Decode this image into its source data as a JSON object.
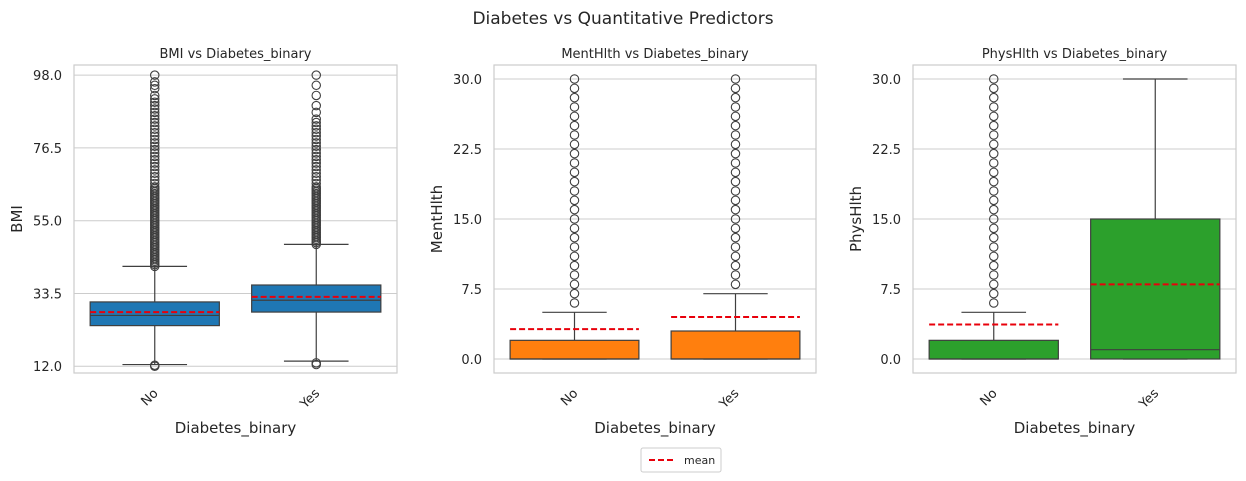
{
  "suptitle": "Diabetes vs Quantitative Predictors",
  "legend": {
    "label": "mean",
    "line_color": "#e8000b",
    "placement": "bottom-center"
  },
  "chart_data": [
    {
      "type": "box",
      "title": "BMI vs Diabetes_binary",
      "xlabel": "Diabetes_binary",
      "ylabel": "BMI",
      "categories": [
        "No",
        "Yes"
      ],
      "color": "#1f77b4",
      "ylim": [
        10.0,
        101.0
      ],
      "yticks": [
        12.0,
        33.5,
        55.0,
        76.5,
        98.0
      ],
      "ytick_labels": [
        "12.0",
        "33.5",
        "55.0",
        "76.5",
        "98.0"
      ],
      "grid": true,
      "boxes": [
        {
          "category": "No",
          "whislo": 12.5,
          "q1": 24.0,
          "median": 27.0,
          "q3": 31.0,
          "whishi": 41.5,
          "mean": 28.0,
          "fliers": [
            12.0,
            12.3,
            41.5,
            42,
            42.5,
            43,
            43.5,
            44,
            44.5,
            45,
            45.5,
            46,
            46.5,
            47,
            47.5,
            48,
            48.5,
            49,
            49.5,
            50,
            50.5,
            51,
            51.5,
            52,
            52.5,
            53,
            53.5,
            54,
            54.5,
            55,
            55.5,
            56,
            56.5,
            57,
            57.5,
            58,
            58.5,
            59,
            59.5,
            60,
            60.5,
            61,
            61.5,
            62,
            62.5,
            63,
            63.5,
            64,
            64.5,
            65,
            66,
            67,
            68,
            69,
            70,
            71,
            72,
            73,
            74,
            75,
            76,
            77,
            78,
            79,
            80,
            81,
            82,
            83,
            84,
            85,
            86,
            87,
            88,
            89,
            90,
            91,
            92,
            94,
            95,
            96,
            98
          ]
        },
        {
          "category": "Yes",
          "whislo": 13.5,
          "q1": 28.0,
          "median": 31.5,
          "q3": 36.0,
          "whishi": 48.0,
          "mean": 32.5,
          "fliers": [
            12.5,
            13.0,
            48.0,
            48.5,
            49,
            49.5,
            50,
            50.5,
            51,
            51.5,
            52,
            52.5,
            53,
            53.5,
            54,
            54.5,
            55,
            55.5,
            56,
            56.5,
            57,
            57.5,
            58,
            58.5,
            59,
            59.5,
            60,
            60.5,
            61,
            61.5,
            62,
            62.5,
            63,
            63.5,
            64,
            64.5,
            65,
            66,
            67,
            68,
            69,
            70,
            71,
            72,
            73,
            74,
            75,
            76,
            77,
            78,
            79,
            80,
            81,
            82,
            83,
            84,
            85,
            87,
            89,
            92,
            95,
            98
          ]
        }
      ]
    },
    {
      "type": "box",
      "title": "MentHlth vs Diabetes_binary",
      "xlabel": "Diabetes_binary",
      "ylabel": "MentHlth",
      "categories": [
        "No",
        "Yes"
      ],
      "color": "#ff7f0e",
      "ylim": [
        -1.5,
        31.5
      ],
      "yticks": [
        0.0,
        7.5,
        15.0,
        22.5,
        30.0
      ],
      "ytick_labels": [
        "0.0",
        "7.5",
        "15.0",
        "22.5",
        "30.0"
      ],
      "grid": true,
      "boxes": [
        {
          "category": "No",
          "whislo": 0,
          "q1": 0,
          "median": 0,
          "q3": 2,
          "whishi": 5,
          "mean": 3.2,
          "fliers": [
            6,
            7,
            8,
            9,
            10,
            11,
            12,
            13,
            14,
            15,
            16,
            17,
            18,
            19,
            20,
            21,
            22,
            23,
            24,
            25,
            26,
            27,
            28,
            29,
            30
          ]
        },
        {
          "category": "Yes",
          "whislo": 0,
          "q1": 0,
          "median": 0,
          "q3": 3,
          "whishi": 7,
          "mean": 4.5,
          "fliers": [
            8,
            9,
            10,
            11,
            12,
            13,
            14,
            15,
            16,
            17,
            18,
            19,
            20,
            21,
            22,
            23,
            24,
            25,
            26,
            27,
            28,
            29,
            30
          ]
        }
      ]
    },
    {
      "type": "box",
      "title": "PhysHlth vs Diabetes_binary",
      "xlabel": "Diabetes_binary",
      "ylabel": "PhysHlth",
      "categories": [
        "No",
        "Yes"
      ],
      "color": "#2ca02c",
      "ylim": [
        -1.5,
        31.5
      ],
      "yticks": [
        0.0,
        7.5,
        15.0,
        22.5,
        30.0
      ],
      "ytick_labels": [
        "0.0",
        "7.5",
        "15.0",
        "22.5",
        "30.0"
      ],
      "grid": true,
      "boxes": [
        {
          "category": "No",
          "whislo": 0,
          "q1": 0,
          "median": 0,
          "q3": 2,
          "whishi": 5,
          "mean": 3.7,
          "fliers": [
            6,
            7,
            8,
            9,
            10,
            11,
            12,
            13,
            14,
            15,
            16,
            17,
            18,
            19,
            20,
            21,
            22,
            23,
            24,
            25,
            26,
            27,
            28,
            29,
            30
          ]
        },
        {
          "category": "Yes",
          "whislo": 0,
          "q1": 0,
          "median": 1,
          "q3": 15,
          "whishi": 30,
          "mean": 8.0,
          "fliers": []
        }
      ]
    }
  ]
}
